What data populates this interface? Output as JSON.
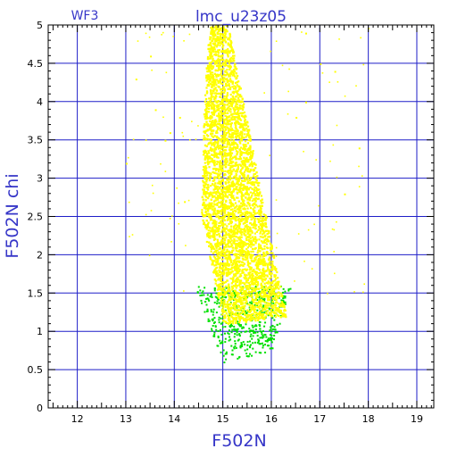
{
  "chart_data": {
    "type": "scatter",
    "title": "lmc_u23z05",
    "corner_label": "WF3",
    "xlabel": "F502N",
    "ylabel": "F502N chi",
    "xlim": [
      11.4,
      19.35
    ],
    "ylim": [
      0,
      5
    ],
    "xticks": [
      12,
      13,
      14,
      15,
      16,
      17,
      18,
      19
    ],
    "yticks": [
      0,
      0.5,
      1,
      1.5,
      2,
      2.5,
      3,
      3.5,
      4,
      4.5,
      5
    ],
    "grid": true,
    "colors": {
      "grid": "#1e1ec8",
      "axes": "#000000",
      "label": "#3636c8",
      "main_points": "#ffff00",
      "low_chi_points": "#00e000"
    },
    "series": [
      {
        "color": "#ffff00",
        "description_density": "dense wedge",
        "envelope": [
          {
            "x": 14.7,
            "y": 5.0
          },
          {
            "x": 15.1,
            "y": 5.0
          },
          {
            "x": 16.1,
            "y": 1.8
          },
          {
            "x": 16.3,
            "y": 1.2
          },
          {
            "x": 15.0,
            "y": 1.1
          },
          {
            "x": 14.55,
            "y": 2.5
          },
          {
            "x": 14.6,
            "y": 4.0
          }
        ]
      },
      {
        "color": "#00e000",
        "envelope": [
          {
            "x": 14.4,
            "y": 1.6
          },
          {
            "x": 16.4,
            "y": 1.6
          },
          {
            "x": 16.0,
            "y": 0.75
          },
          {
            "x": 15.0,
            "y": 0.6
          }
        ]
      }
    ],
    "outliers": [
      {
        "x": 13.0,
        "y": 3.2
      },
      {
        "x": 13.2,
        "y": 4.3
      },
      {
        "x": 13.5,
        "y": 4.6
      },
      {
        "x": 13.8,
        "y": 3.5
      },
      {
        "x": 13.9,
        "y": 3.6
      },
      {
        "x": 14.1,
        "y": 3.8
      },
      {
        "x": 16.7,
        "y": 4.9
      },
      {
        "x": 17.0,
        "y": 4.5
      },
      {
        "x": 17.3,
        "y": 4.4
      },
      {
        "x": 17.5,
        "y": 2.8
      },
      {
        "x": 17.8,
        "y": 3.4
      },
      {
        "x": 16.7,
        "y": 4.0
      },
      {
        "x": 16.5,
        "y": 3.8
      },
      {
        "x": 13.6,
        "y": 3.9
      },
      {
        "x": 14.2,
        "y": 2.7
      }
    ]
  }
}
